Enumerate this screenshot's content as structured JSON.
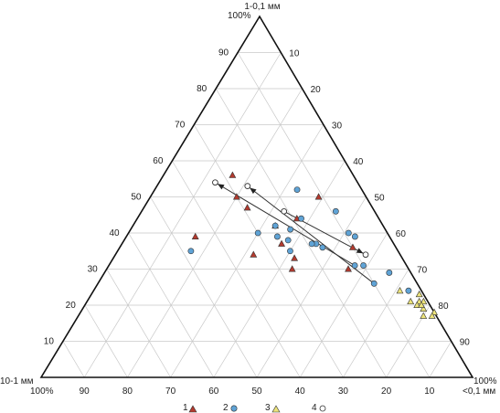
{
  "chart_data": {
    "type": "scatter",
    "subtype": "ternary",
    "vertex_labels": {
      "top": "1-0,1 мм",
      "bottom_left": "10-1 мм",
      "bottom_right": "<0,1 мм"
    },
    "vertex_percent_labels": {
      "top": "100%",
      "bottom_left": "100%",
      "bottom_right": "100%"
    },
    "axis_ticks": {
      "left_side": [
        "10",
        "20",
        "30",
        "40",
        "50",
        "60",
        "70",
        "80",
        "90"
      ],
      "right_side": [
        "10",
        "20",
        "30",
        "40",
        "50",
        "60",
        "70",
        "80",
        "90"
      ],
      "bottom_side": [
        "90",
        "80",
        "70",
        "60",
        "50",
        "40",
        "30",
        "20",
        "10"
      ]
    },
    "grid": true,
    "grid_step": 10,
    "components": [
      "10-1 мм",
      "1-0,1 мм",
      "<0,1 мм"
    ],
    "legend_position": "bottom-center",
    "series": [
      {
        "name": "1",
        "marker": "triangle",
        "color": "#b33a2e",
        "points": [
          [
            28,
            56,
            16
          ],
          [
            30,
            50,
            20
          ],
          [
            29,
            47,
            24
          ],
          [
            11,
            50,
            39
          ],
          [
            34,
            34,
            32
          ],
          [
            25,
            42,
            33
          ],
          [
            19,
            44,
            37
          ],
          [
            26,
            37,
            37
          ],
          [
            27,
            30,
            43
          ],
          [
            45,
            39,
            16
          ],
          [
            14,
            30,
            56
          ],
          [
            25,
            33,
            42
          ],
          [
            10,
            36,
            54
          ]
        ]
      },
      {
        "name": "2",
        "marker": "circle",
        "color": "#5fa3d6",
        "points": [
          [
            15,
            52,
            33
          ],
          [
            22,
            41,
            37
          ],
          [
            18,
            44,
            38
          ],
          [
            9,
            46,
            45
          ],
          [
            26,
            39,
            35
          ],
          [
            30,
            40,
            30
          ],
          [
            25,
            35,
            40
          ],
          [
            25,
            42,
            33
          ],
          [
            17,
            36,
            47
          ],
          [
            8,
            39,
            53
          ],
          [
            24,
            38,
            38
          ],
          [
            18,
            37,
            45
          ],
          [
            19,
            37,
            44
          ],
          [
            9,
            40,
            51
          ],
          [
            10,
            31,
            59
          ],
          [
            5,
            29,
            66
          ],
          [
            3,
            24,
            73
          ],
          [
            48,
            35,
            17
          ],
          [
            12,
            31,
            57
          ],
          [
            10,
            26,
            64
          ]
        ]
      },
      {
        "name": "3",
        "marker": "triangle",
        "color": "#ece37a",
        "points": [
          [
            5,
            24,
            71
          ],
          [
            2,
            21,
            77
          ],
          [
            1,
            21,
            78
          ],
          [
            3,
            20,
            77
          ],
          [
            2,
            19,
            79
          ],
          [
            0,
            18,
            82
          ],
          [
            1,
            17,
            82
          ],
          [
            3,
            17,
            80
          ],
          [
            4,
            21,
            75
          ],
          [
            2,
            20,
            78
          ],
          [
            1,
            23,
            76
          ]
        ]
      },
      {
        "name": "4",
        "marker": "open-circle",
        "color": "#ffffff",
        "points": [
          [
            33,
            54,
            13
          ],
          [
            26,
            53,
            21
          ],
          [
            21,
            46,
            33
          ],
          [
            8,
            34,
            58
          ]
        ]
      }
    ],
    "arrows": [
      {
        "from": [
          12,
          31,
          57
        ],
        "to": [
          33,
          54,
          13
        ]
      },
      {
        "from": [
          10,
          26,
          64
        ],
        "to": [
          26,
          53,
          21
        ]
      },
      {
        "from": [
          21,
          46,
          33
        ],
        "to": [
          8,
          34,
          58
        ]
      }
    ]
  }
}
